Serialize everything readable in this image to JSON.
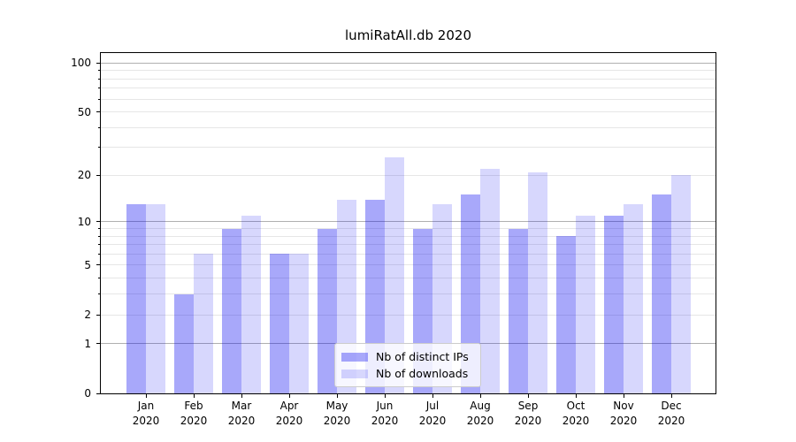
{
  "chart_data": {
    "type": "bar",
    "title": "lumiRatAll.db 2020",
    "categories": [
      "Jan",
      "Feb",
      "Mar",
      "Apr",
      "May",
      "Jun",
      "Jul",
      "Aug",
      "Sep",
      "Oct",
      "Nov",
      "Dec"
    ],
    "x_sublabel": "2020",
    "series": [
      {
        "name": "Nb of distinct IPs",
        "color": "rgba(0,0,240,0.34)",
        "values": [
          13,
          3,
          9,
          6,
          9,
          14,
          9,
          15,
          9,
          8,
          11,
          15
        ]
      },
      {
        "name": "Nb of downloads",
        "color": "rgba(0,0,240,0.155)",
        "values": [
          13,
          6,
          11,
          6,
          14,
          26,
          13,
          22,
          21,
          11,
          13,
          20
        ]
      }
    ],
    "yscale": "log1p",
    "ylim": [
      0,
      115
    ],
    "ytick_labels": [
      0,
      1,
      2,
      5,
      10,
      20,
      50,
      100
    ],
    "major_gridlines": [
      1,
      10,
      100
    ],
    "minor_gridlines": [
      2,
      3,
      4,
      5,
      6,
      7,
      8,
      9,
      20,
      30,
      40,
      50,
      60,
      70,
      80,
      90
    ],
    "grid": true,
    "legend_position": "lower center",
    "colors": {
      "major_grid": "#b0b0b0",
      "minor_grid": "#e6e6e6",
      "axis": "#000000",
      "text": "#000000",
      "background": "#ffffff"
    }
  }
}
